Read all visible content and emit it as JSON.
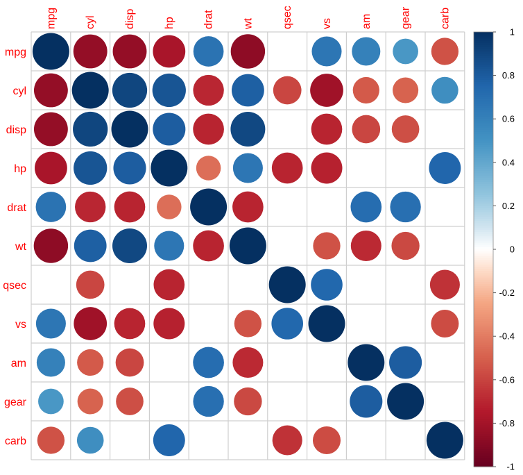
{
  "chart_data": {
    "type": "heatmap",
    "variables": [
      "mpg",
      "cyl",
      "disp",
      "hp",
      "drat",
      "wt",
      "qsec",
      "vs",
      "am",
      "gear",
      "carb"
    ],
    "matrix": [
      [
        1.0,
        -0.85,
        -0.85,
        -0.78,
        0.68,
        -0.87,
        null,
        0.66,
        0.6,
        0.48,
        -0.55
      ],
      [
        -0.85,
        1.0,
        0.9,
        0.83,
        -0.7,
        0.78,
        -0.59,
        -0.81,
        -0.52,
        -0.49,
        0.53
      ],
      [
        -0.85,
        0.9,
        1.0,
        0.79,
        -0.71,
        0.89,
        null,
        -0.71,
        -0.59,
        -0.56,
        null
      ],
      [
        -0.78,
        0.83,
        0.79,
        1.0,
        -0.45,
        0.66,
        -0.71,
        -0.72,
        null,
        null,
        0.75
      ],
      [
        0.68,
        -0.7,
        -0.71,
        -0.45,
        1.0,
        -0.71,
        null,
        null,
        0.71,
        0.7,
        null
      ],
      [
        -0.87,
        0.78,
        0.89,
        0.66,
        -0.71,
        1.0,
        null,
        -0.55,
        -0.69,
        -0.58,
        null
      ],
      [
        null,
        -0.59,
        null,
        -0.71,
        null,
        null,
        1.0,
        0.74,
        null,
        null,
        -0.66
      ],
      [
        0.66,
        -0.81,
        -0.71,
        -0.72,
        null,
        -0.55,
        0.74,
        1.0,
        null,
        null,
        -0.57
      ],
      [
        0.6,
        -0.52,
        -0.59,
        null,
        0.71,
        -0.69,
        null,
        null,
        1.0,
        0.79,
        null
      ],
      [
        0.48,
        -0.49,
        -0.56,
        null,
        0.7,
        -0.58,
        null,
        null,
        0.79,
        1.0,
        null
      ],
      [
        -0.55,
        0.53,
        null,
        0.75,
        null,
        null,
        -0.66,
        -0.57,
        null,
        null,
        1.0
      ]
    ],
    "colorbar_ticks": [
      "1",
      "0.8",
      "0.6",
      "0.4",
      "0.2",
      "0",
      "-0.2",
      "-0.4",
      "-0.6",
      "-0.8",
      "-1"
    ],
    "colorbar_range": [
      -1,
      1
    ],
    "grid": true,
    "label_color": "#ff0000"
  }
}
